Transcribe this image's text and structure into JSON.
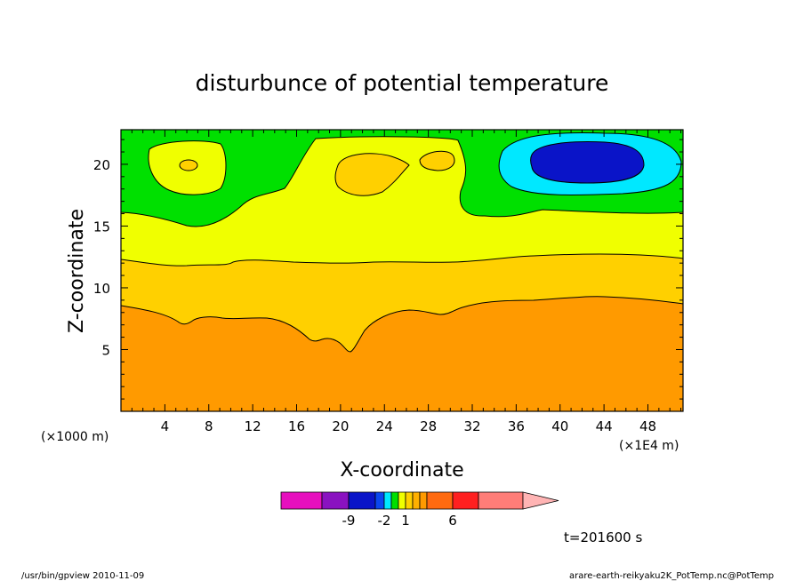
{
  "chart_data": {
    "type": "contour",
    "title": "disturbunce of potential temperature",
    "xlabel": "X-coordinate",
    "ylabel": "Z-coordinate",
    "x_unit_left": "(×1000 m)",
    "x_unit_right": "(×1E4 m)",
    "xlim": [
      0,
      51.2
    ],
    "ylim": [
      0,
      22.8
    ],
    "x_ticks": [
      4,
      8,
      12,
      16,
      20,
      24,
      28,
      32,
      36,
      40,
      44,
      48
    ],
    "y_ticks": [
      5,
      10,
      15,
      20
    ],
    "bands": [
      {
        "band": "-2 to -1",
        "color": "#0a14c8"
      },
      {
        "band": "-1 to 0",
        "color": "#00e8ff"
      },
      {
        "band": "0 to 1",
        "color": "#00e000"
      },
      {
        "band": "1 to 2",
        "color": "#f0ff00"
      },
      {
        "band": "2 to 3",
        "color": "#ffd000"
      },
      {
        "band": "3 to 6",
        "color": "#ff9a00"
      }
    ],
    "contour_lines": [
      {
        "level": 3,
        "z_at_x": [
          [
            0,
            8.6
          ],
          [
            6,
            7.2
          ],
          [
            10,
            7.6
          ],
          [
            14,
            7.4
          ],
          [
            18,
            5.6
          ],
          [
            21,
            4.8
          ],
          [
            25,
            7.8
          ],
          [
            28,
            8.2
          ],
          [
            31,
            7.9
          ],
          [
            35,
            8.9
          ],
          [
            42,
            9.5
          ],
          [
            51.2,
            8.7
          ]
        ]
      },
      {
        "level": 2,
        "z_at_x": [
          [
            0,
            12.4
          ],
          [
            6,
            11.9
          ],
          [
            12,
            12.2
          ],
          [
            20,
            12.0
          ],
          [
            30,
            12.2
          ],
          [
            40,
            12.8
          ],
          [
            51.2,
            12.4
          ]
        ]
      },
      {
        "level": 1,
        "z_at_x": [
          [
            0,
            16.2
          ],
          [
            6,
            15.0
          ],
          [
            11,
            16.0
          ],
          [
            17,
            20.5
          ],
          [
            22,
            22.0
          ],
          [
            30,
            22.1
          ],
          [
            31,
            19.0
          ],
          [
            31,
            16.6
          ],
          [
            37,
            16.0
          ],
          [
            44,
            16.2
          ],
          [
            51.2,
            16.1
          ]
        ]
      }
    ],
    "colorbar": {
      "colors": [
        "#e60fbe",
        "#8a12c0",
        "#0a14c8",
        "#0a46f0",
        "#00e8ff",
        "#00e000",
        "#f0ff00",
        "#ffd000",
        "#ffb000",
        "#ff9a00",
        "#ff6a10",
        "#ff2020",
        "#ff7d78",
        "#ffb4b4"
      ],
      "labels": [
        "-9",
        "-2",
        "1",
        "6"
      ]
    },
    "time_label": "t=201600 s"
  },
  "footer": {
    "left": "/usr/bin/gpview   2010-11-09",
    "right": "arare-earth-reikyaku2K_PotTemp.nc@PotTemp"
  }
}
